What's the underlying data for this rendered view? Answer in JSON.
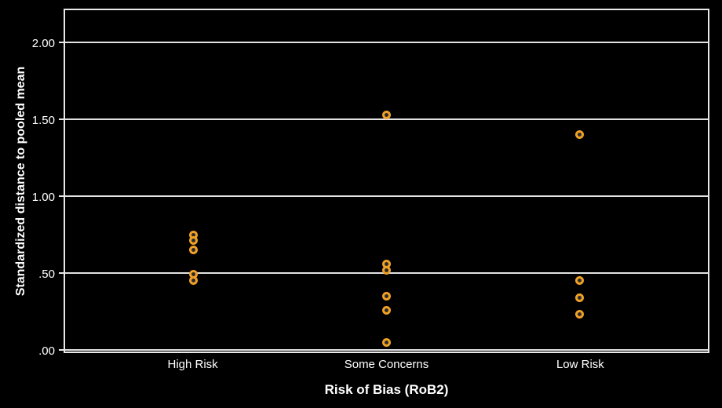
{
  "figure": {
    "background": "#000000",
    "text_color": "#FFFFFF",
    "frame_color": "#E9E9E9",
    "grid_color": "#E2E2E2"
  },
  "marker": {
    "shape": "open-circle",
    "stroke_color": "#F0A125",
    "fill_color": "#2B2B2B"
  },
  "chart_data": {
    "type": "scatter",
    "title": "",
    "xlabel": "Risk of Bias (RoB2)",
    "ylabel": "Standardized distance to pooled mean",
    "ylim": [
      0,
      2.21
    ],
    "grid": true,
    "legend": false,
    "yticks": {
      "values": [
        0,
        0.5,
        1.0,
        1.5,
        2.0
      ],
      "labels": [
        ".00",
        ".50",
        "1.00",
        "1.50",
        "2.00"
      ]
    },
    "categories": [
      "High Risk",
      "Some Concerns",
      "Low Risk"
    ],
    "category_positions": [
      0.2,
      0.5,
      0.8
    ],
    "series": [
      {
        "name": "High Risk",
        "values": [
          0.75,
          0.71,
          0.65,
          0.49,
          0.45
        ]
      },
      {
        "name": "Some Concerns",
        "values": [
          1.53,
          0.56,
          0.52,
          0.35,
          0.26,
          0.05
        ]
      },
      {
        "name": "Low Risk",
        "values": [
          1.4,
          0.45,
          0.34,
          0.23
        ]
      }
    ]
  }
}
